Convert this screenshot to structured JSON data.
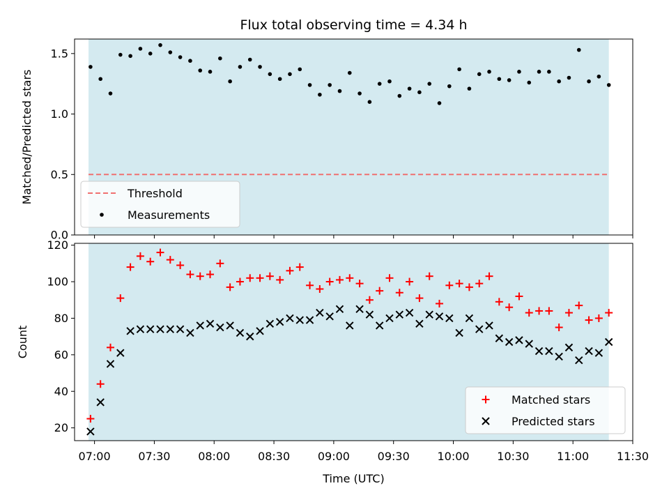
{
  "chart_data": [
    {
      "type": "scatter",
      "title": "Flux total observing time = 4.34 h",
      "ylabel": "Matched/Predicted stars",
      "ylim": [
        0,
        1.62
      ],
      "yticks": [
        "0.0",
        "0.5",
        "1.0",
        "1.5"
      ],
      "xlim": [
        "06:50",
        "11:30"
      ],
      "shaded_region": {
        "start": "06:57",
        "end": "11:18",
        "color": "#d4eaf0"
      },
      "legend_position": "lower left",
      "threshold": {
        "name": "Threshold",
        "value": 0.5,
        "start": "06:57",
        "end": "11:18",
        "color": "#f07070"
      },
      "series": [
        {
          "name": "Measurements",
          "color": "#000000",
          "marker": "dot",
          "x": [
            "06:58",
            "07:03",
            "07:08",
            "07:13",
            "07:18",
            "07:23",
            "07:28",
            "07:33",
            "07:38",
            "07:43",
            "07:48",
            "07:53",
            "07:58",
            "08:03",
            "08:08",
            "08:13",
            "08:18",
            "08:23",
            "08:28",
            "08:33",
            "08:38",
            "08:43",
            "08:48",
            "08:53",
            "08:58",
            "09:03",
            "09:08",
            "09:13",
            "09:18",
            "09:23",
            "09:28",
            "09:33",
            "09:38",
            "09:43",
            "09:48",
            "09:53",
            "09:58",
            "10:03",
            "10:08",
            "10:13",
            "10:18",
            "10:23",
            "10:28",
            "10:33",
            "10:38",
            "10:43",
            "10:48",
            "10:53",
            "10:58",
            "11:03",
            "11:08",
            "11:13",
            "11:18"
          ],
          "y": [
            1.39,
            1.29,
            1.17,
            1.49,
            1.48,
            1.54,
            1.5,
            1.57,
            1.51,
            1.47,
            1.44,
            1.36,
            1.35,
            1.46,
            1.27,
            1.39,
            1.45,
            1.39,
            1.33,
            1.29,
            1.33,
            1.37,
            1.24,
            1.16,
            1.24,
            1.19,
            1.34,
            1.17,
            1.1,
            1.25,
            1.27,
            1.15,
            1.21,
            1.18,
            1.25,
            1.09,
            1.23,
            1.37,
            1.21,
            1.33,
            1.35,
            1.29,
            1.28,
            1.35,
            1.26,
            1.35,
            1.35,
            1.27,
            1.3,
            1.53,
            1.27,
            1.31,
            1.24
          ]
        }
      ]
    },
    {
      "type": "scatter",
      "xlabel": "Time (UTC)",
      "ylabel": "Count",
      "ylim": [
        13,
        121
      ],
      "yticks": [
        "20",
        "40",
        "60",
        "80",
        "100",
        "120"
      ],
      "xlim": [
        "06:50",
        "11:30"
      ],
      "xticks": [
        "07:00",
        "07:30",
        "08:00",
        "08:30",
        "09:00",
        "09:30",
        "10:00",
        "10:30",
        "11:00",
        "11:30"
      ],
      "shaded_region": {
        "start": "06:57",
        "end": "11:18",
        "color": "#d4eaf0"
      },
      "legend_position": "lower right",
      "series": [
        {
          "name": "Matched stars",
          "color": "#ff0000",
          "marker": "plus",
          "x": [
            "06:58",
            "07:03",
            "07:08",
            "07:13",
            "07:18",
            "07:23",
            "07:28",
            "07:33",
            "07:38",
            "07:43",
            "07:48",
            "07:53",
            "07:58",
            "08:03",
            "08:08",
            "08:13",
            "08:18",
            "08:23",
            "08:28",
            "08:33",
            "08:38",
            "08:43",
            "08:48",
            "08:53",
            "08:58",
            "09:03",
            "09:08",
            "09:13",
            "09:18",
            "09:23",
            "09:28",
            "09:33",
            "09:38",
            "09:43",
            "09:48",
            "09:53",
            "09:58",
            "10:03",
            "10:08",
            "10:13",
            "10:18",
            "10:23",
            "10:28",
            "10:33",
            "10:38",
            "10:43",
            "10:48",
            "10:53",
            "10:58",
            "11:03",
            "11:08",
            "11:13",
            "11:18"
          ],
          "y": [
            25,
            44,
            64,
            91,
            108,
            114,
            111,
            116,
            112,
            109,
            104,
            103,
            104,
            110,
            97,
            100,
            102,
            102,
            103,
            101,
            106,
            108,
            98,
            96,
            100,
            101,
            102,
            99,
            90,
            95,
            102,
            94,
            100,
            91,
            103,
            88,
            98,
            99,
            97,
            99,
            103,
            89,
            86,
            92,
            83,
            84,
            84,
            75,
            83,
            87,
            79,
            80,
            83
          ]
        },
        {
          "name": "Predicted stars",
          "color": "#000000",
          "marker": "x",
          "x": [
            "06:58",
            "07:03",
            "07:08",
            "07:13",
            "07:18",
            "07:23",
            "07:28",
            "07:33",
            "07:38",
            "07:43",
            "07:48",
            "07:53",
            "07:58",
            "08:03",
            "08:08",
            "08:13",
            "08:18",
            "08:23",
            "08:28",
            "08:33",
            "08:38",
            "08:43",
            "08:48",
            "08:53",
            "08:58",
            "09:03",
            "09:08",
            "09:13",
            "09:18",
            "09:23",
            "09:28",
            "09:33",
            "09:38",
            "09:43",
            "09:48",
            "09:53",
            "09:58",
            "10:03",
            "10:08",
            "10:13",
            "10:18",
            "10:23",
            "10:28",
            "10:33",
            "10:38",
            "10:43",
            "10:48",
            "10:53",
            "10:58",
            "11:03",
            "11:08",
            "11:13",
            "11:18"
          ],
          "y": [
            18,
            34,
            55,
            61,
            73,
            74,
            74,
            74,
            74,
            74,
            72,
            76,
            77,
            75,
            76,
            72,
            70,
            73,
            77,
            78,
            80,
            79,
            79,
            83,
            81,
            85,
            76,
            85,
            82,
            76,
            80,
            82,
            83,
            77,
            82,
            81,
            80,
            72,
            80,
            74,
            76,
            69,
            67,
            68,
            66,
            62,
            62,
            59,
            64,
            57,
            62,
            61,
            67
          ]
        }
      ]
    }
  ]
}
